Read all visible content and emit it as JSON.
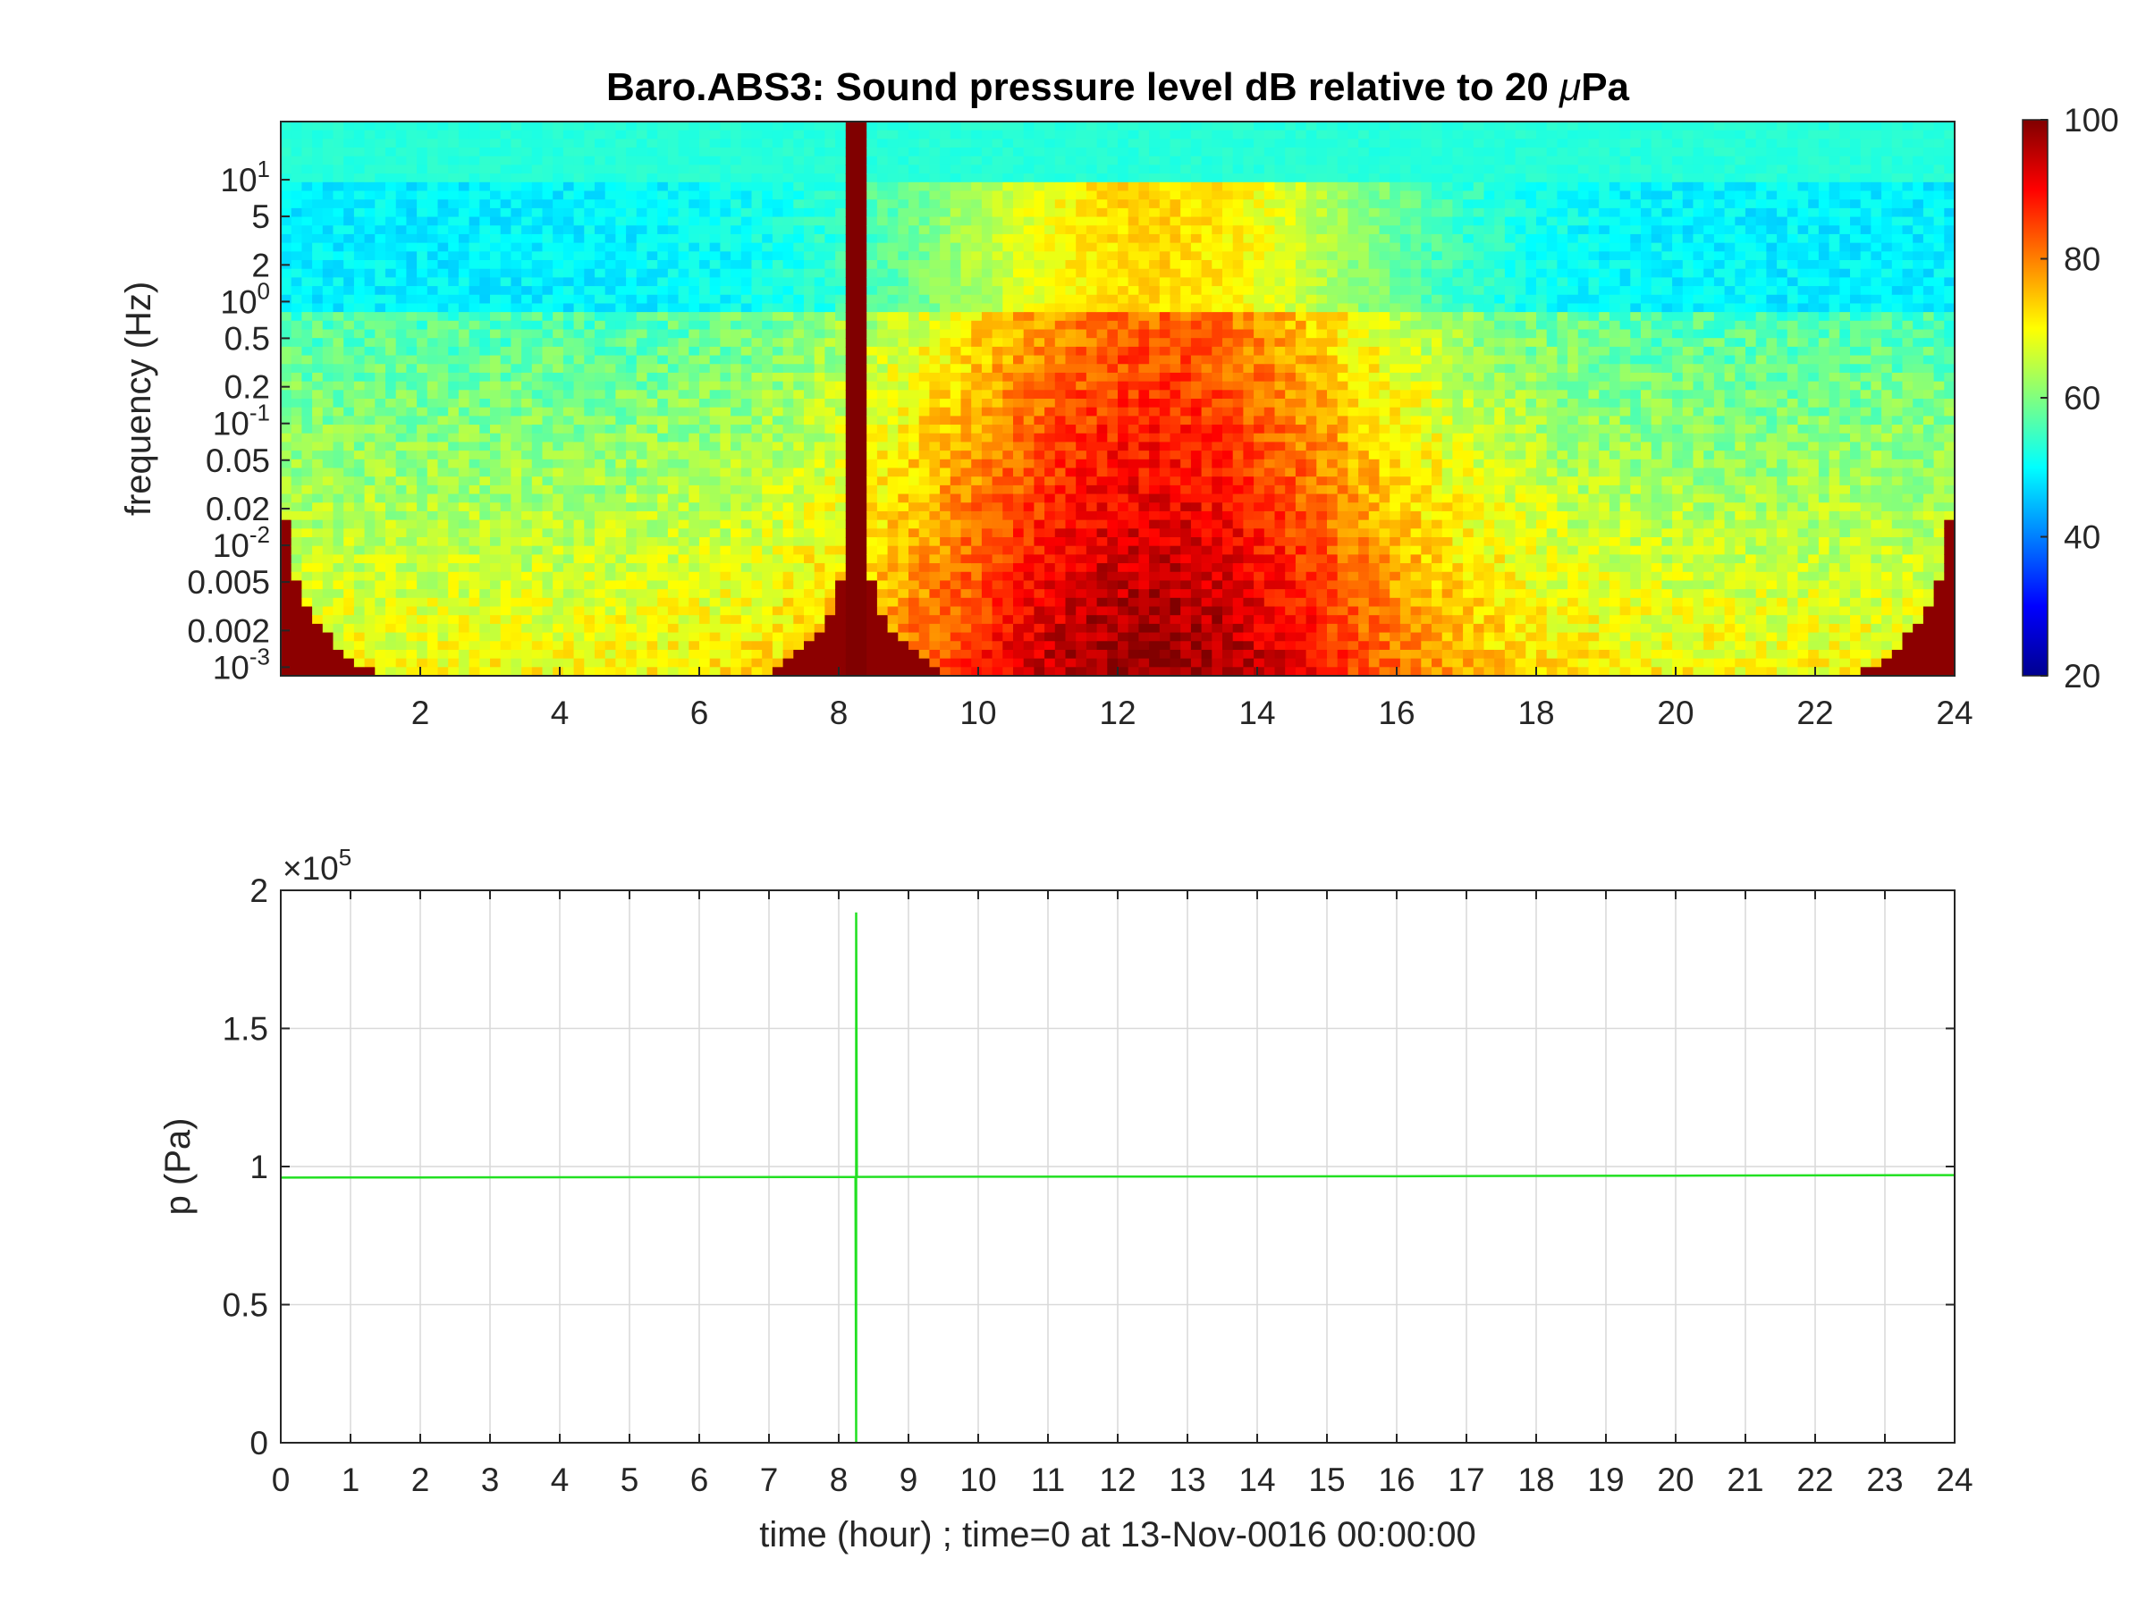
{
  "colors": {
    "line": "#22e022",
    "axis": "#262626",
    "grid": "#d9d9d9",
    "colormap": "jet"
  },
  "chart_data": [
    {
      "type": "heatmap",
      "title": "Baro.ABS3: Sound pressure level dB relative to 20 μPa",
      "title_parts": {
        "prefix": "Baro.ABS3: Sound pressure level dB relative to 20 ",
        "mu": "μ",
        "suffix": "Pa"
      },
      "xlabel": "",
      "ylabel": "frequency (Hz)",
      "x_range": [
        0,
        24
      ],
      "x_ticks": [
        2,
        4,
        6,
        8,
        10,
        12,
        14,
        16,
        18,
        20,
        22,
        24
      ],
      "y_scale": "log",
      "y_range": [
        0.00085,
        30
      ],
      "y_ticks": [
        {
          "value": 10,
          "base": "10",
          "exp": "1"
        },
        {
          "value": 5,
          "label": "5"
        },
        {
          "value": 2,
          "label": "2"
        },
        {
          "value": 1,
          "base": "10",
          "exp": "0"
        },
        {
          "value": 0.5,
          "label": "0.5"
        },
        {
          "value": 0.2,
          "label": "0.2"
        },
        {
          "value": 0.1,
          "base": "10",
          "exp": "-1"
        },
        {
          "value": 0.05,
          "label": "0.05"
        },
        {
          "value": 0.02,
          "label": "0.02"
        },
        {
          "value": 0.01,
          "base": "10",
          "exp": "-2"
        },
        {
          "value": 0.005,
          "label": "0.005"
        },
        {
          "value": 0.002,
          "label": "0.002"
        },
        {
          "value": 0.001,
          "base": "10",
          "exp": "-3"
        }
      ],
      "colorbar": {
        "min": 20,
        "max": 100,
        "ticks": [
          20,
          40,
          60,
          80,
          100
        ]
      },
      "event_time": 8.25,
      "value_units": "dB",
      "grid": false
    },
    {
      "type": "line",
      "title": "",
      "xlabel": "time (hour) ; time=0 at 13-Nov-0016 00:00:00",
      "ylabel": "p (Pa)",
      "x_range": [
        0,
        24
      ],
      "x_ticks": [
        0,
        1,
        2,
        3,
        4,
        5,
        6,
        7,
        8,
        9,
        10,
        11,
        12,
        13,
        14,
        15,
        16,
        17,
        18,
        19,
        20,
        21,
        22,
        23,
        24
      ],
      "y_range": [
        0,
        200000
      ],
      "y_ticks": [
        {
          "value": 0,
          "label": "0"
        },
        {
          "value": 50000,
          "label": "0.5"
        },
        {
          "value": 100000,
          "label": "1"
        },
        {
          "value": 150000,
          "label": "1.5"
        },
        {
          "value": 200000,
          "label": "2"
        }
      ],
      "y_multiplier": {
        "base": "×10",
        "exp": "5"
      },
      "grid": true,
      "series": [
        {
          "x": [
            0,
            2,
            4,
            6,
            8,
            8.24,
            8.25,
            8.25,
            8.26,
            10,
            12,
            14,
            16,
            18,
            20,
            22,
            24
          ],
          "y": [
            96000,
            96050,
            96100,
            96150,
            96200,
            96200,
            0,
            192000,
            96250,
            96300,
            96350,
            96400,
            96500,
            96600,
            96700,
            96800,
            96900
          ]
        }
      ]
    }
  ]
}
